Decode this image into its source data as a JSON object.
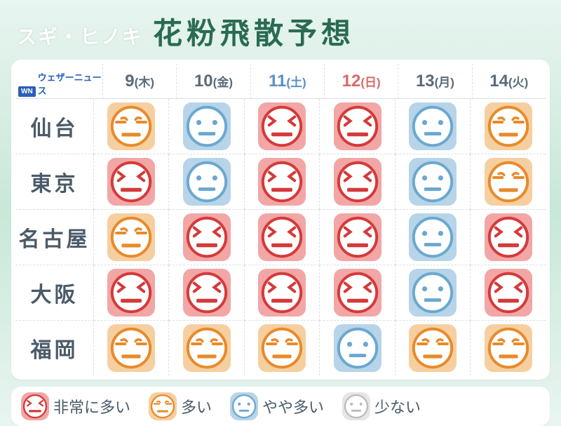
{
  "title": {
    "sub": "スギ・ヒノキ",
    "main": "花粉飛散予想"
  },
  "logo": {
    "badge": "WN",
    "text": "ウェザーニュース"
  },
  "colors": {
    "background_gradient": [
      "#e8f5f0",
      "#c8e8d8",
      "#e8f5f0"
    ],
    "panel_bg": "#ffffff",
    "text_muted": "#5a6b7a",
    "text_city": "#4a5a68",
    "title_main": "#2a6b52",
    "title_sub": "#ffffff",
    "logo_blue": "#2b5fb8",
    "grid_line": "#d8e0e6",
    "day_default": "#5a6b7a",
    "day_sat": "#5a8fc8",
    "day_sun": "#d86a6a",
    "level4_bg": "#f2a6a6",
    "level4_stroke": "#d43a3a",
    "level3_bg": "#f6cfa0",
    "level3_stroke": "#e88a2a",
    "level2_bg": "#b8d4e8",
    "level2_stroke": "#6aa8d0",
    "level1_bg": "#e6e6e6",
    "level1_stroke": "#bcbcbc",
    "face_fill": "#ffffff"
  },
  "days": [
    {
      "num": "9",
      "dow": "(木)",
      "kind": "wd"
    },
    {
      "num": "10",
      "dow": "(金)",
      "kind": "wd"
    },
    {
      "num": "11",
      "dow": "(土)",
      "kind": "sat"
    },
    {
      "num": "12",
      "dow": "(日)",
      "kind": "sun"
    },
    {
      "num": "13",
      "dow": "(月)",
      "kind": "wd"
    },
    {
      "num": "14",
      "dow": "(火)",
      "kind": "wd"
    }
  ],
  "cities": [
    "仙台",
    "東京",
    "名古屋",
    "大阪",
    "福岡"
  ],
  "levels_grid": [
    [
      3,
      2,
      4,
      4,
      2,
      3
    ],
    [
      4,
      2,
      4,
      4,
      2,
      3
    ],
    [
      3,
      4,
      4,
      4,
      2,
      4
    ],
    [
      4,
      4,
      4,
      4,
      2,
      4
    ],
    [
      3,
      3,
      3,
      2,
      3,
      3
    ]
  ],
  "legend": [
    {
      "level": 4,
      "label": "非常に多い"
    },
    {
      "level": 3,
      "label": "多い"
    },
    {
      "level": 2,
      "label": "やや多い"
    },
    {
      "level": 1,
      "label": "少ない"
    }
  ],
  "icon": {
    "tile_radius": 12,
    "tile_size_grid": 68,
    "tile_size_legend": 40,
    "face_radius_ratio": 0.4,
    "stroke_width": 4
  },
  "typography": {
    "title_sub_pt": 28,
    "title_main_pt": 42,
    "day_num_pt": 24,
    "day_dow_pt": 17,
    "city_pt": 30,
    "legend_pt": 22
  }
}
